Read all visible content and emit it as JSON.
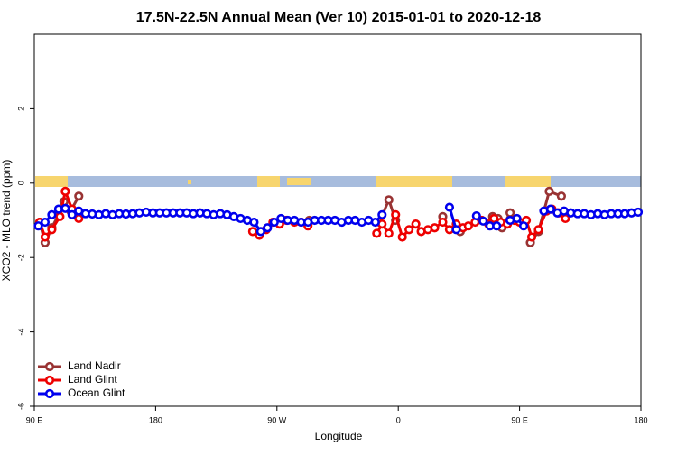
{
  "chart_data": {
    "type": "line",
    "title": "17.5N-22.5N Annual Mean (Ver 10)   2015-01-01 to 2020-12-18",
    "x_label": "Longitude",
    "y_label": "XCO2 - MLO trend (ppm)",
    "xlim": [
      90,
      540
    ],
    "ylim": [
      -6,
      4
    ],
    "xticks": [
      {
        "value": 90,
        "label": "90 E"
      },
      {
        "value": 180,
        "label": "180"
      },
      {
        "value": 270,
        "label": "90 W"
      },
      {
        "value": 360,
        "label": "0"
      },
      {
        "value": 450,
        "label": "90 E"
      },
      {
        "value": 540,
        "label": "180"
      }
    ],
    "yticks": [
      -6,
      -4,
      -2,
      0,
      2
    ],
    "legend": "bottomleft",
    "series": [
      {
        "name": "Land Nadir",
        "color": "#993333",
        "x": [
          94,
          98,
          103,
          108,
          112,
          117,
          123,
          200,
          294,
          320,
          346,
          353,
          358,
          380,
          393,
          400,
          406,
          420,
          430,
          434,
          437,
          443,
          447,
          452,
          458,
          464,
          472,
          481
        ],
        "values": [
          -1.05,
          -1.6,
          -1.2,
          -0.85,
          -0.5,
          -0.75,
          -0.35,
          null,
          -1.0,
          null,
          -1.05,
          -0.45,
          -1.0,
          null,
          -0.9,
          null,
          -1.3,
          null,
          -0.9,
          -0.95,
          -1.2,
          -0.8,
          -1.0,
          null,
          -1.6,
          -1.3,
          -0.22,
          -0.35
        ]
      },
      {
        "name": "Land Glint",
        "color": "#ee0000",
        "x": [
          94,
          98,
          103,
          109,
          113,
          118,
          123,
          200,
          252,
          257,
          262,
          267,
          272,
          277,
          283,
          288,
          293,
          320,
          344,
          348,
          353,
          358,
          363,
          368,
          373,
          377,
          382,
          387,
          393,
          398,
          403,
          408,
          412,
          417,
          422,
          427,
          431,
          436,
          441,
          446,
          450,
          455,
          459,
          464,
          470,
          474,
          479,
          484
        ],
        "values": [
          -1.05,
          -1.45,
          -1.25,
          -0.9,
          -0.22,
          -0.7,
          -0.95,
          null,
          -1.3,
          -1.4,
          -1.25,
          -1.05,
          -1.1,
          -1.0,
          -1.05,
          -1.05,
          -1.15,
          null,
          -1.35,
          -1.1,
          -1.35,
          -0.85,
          -1.45,
          -1.25,
          -1.1,
          -1.3,
          -1.25,
          -1.2,
          -1.05,
          -1.25,
          -1.1,
          -1.2,
          -1.15,
          -1.05,
          -1.0,
          -1.1,
          -0.95,
          -1.05,
          -1.1,
          -1.0,
          -1.05,
          -1.0,
          -1.45,
          -1.25,
          -0.75,
          -0.7,
          -0.8,
          -0.95
        ]
      },
      {
        "name": "Ocean Glint",
        "color": "#0000ee",
        "x": [
          93,
          98,
          103,
          108,
          113,
          118,
          123,
          128,
          133,
          138,
          143,
          148,
          153,
          158,
          163,
          168,
          173,
          178,
          183,
          188,
          193,
          198,
          203,
          208,
          213,
          218,
          223,
          228,
          233,
          238,
          243,
          248,
          253,
          258,
          263,
          268,
          273,
          278,
          283,
          288,
          293,
          298,
          303,
          308,
          313,
          318,
          323,
          328,
          333,
          338,
          343,
          348,
          370,
          398,
          403,
          410,
          418,
          423,
          428,
          433,
          438,
          443,
          448,
          453,
          460,
          468,
          473,
          478,
          483,
          488,
          493,
          498,
          503,
          508,
          513,
          518,
          523,
          528,
          533,
          538
        ],
        "values": [
          -1.15,
          -1.05,
          -0.85,
          -0.7,
          -0.68,
          -0.85,
          -0.75,
          -0.82,
          -0.83,
          -0.85,
          -0.82,
          -0.85,
          -0.82,
          -0.83,
          -0.82,
          -0.8,
          -0.78,
          -0.8,
          -0.8,
          -0.8,
          -0.8,
          -0.8,
          -0.8,
          -0.82,
          -0.8,
          -0.82,
          -0.85,
          -0.82,
          -0.85,
          -0.9,
          -0.95,
          -1.0,
          -1.05,
          -1.3,
          -1.2,
          -1.05,
          -0.95,
          -1.0,
          -1.0,
          -1.05,
          -1.05,
          -1.0,
          -1.0,
          -1.0,
          -1.0,
          -1.05,
          -1.0,
          -1.0,
          -1.05,
          -1.0,
          -1.05,
          -0.85,
          null,
          -0.65,
          -1.25,
          null,
          -0.88,
          -1.02,
          -1.15,
          -1.15,
          null,
          -1.0,
          -0.95,
          -1.15,
          null,
          -0.75,
          -0.7,
          -0.8,
          -0.75,
          -0.8,
          -0.82,
          -0.82,
          -0.85,
          -0.82,
          -0.85,
          -0.82,
          -0.82,
          -0.82,
          -0.8,
          -0.78
        ]
      }
    ]
  }
}
